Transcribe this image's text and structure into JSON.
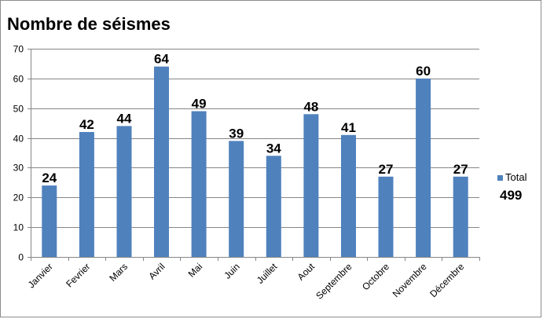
{
  "chart_data": {
    "type": "bar",
    "title": "Nombre de séismes",
    "categories": [
      "Janvier",
      "Fevrier",
      "Mars",
      "Avril",
      "Mai",
      "Juin",
      "Juillet",
      "Aout",
      "Septembre",
      "Octobre",
      "Novembre",
      "Décembre"
    ],
    "series": [
      {
        "name": "Total",
        "values": [
          24,
          42,
          44,
          64,
          49,
          39,
          34,
          48,
          41,
          27,
          60,
          27
        ],
        "data_labels": [
          "24",
          "42",
          "44",
          "64",
          "49",
          "39",
          "34",
          "48",
          "41",
          "27",
          "60",
          "27"
        ],
        "color": "#4f81bd"
      }
    ],
    "ylim": [
      0,
      70
    ],
    "yticks": [
      0,
      10,
      20,
      30,
      40,
      50,
      60,
      70
    ],
    "grid": true,
    "legend": {
      "position": "right",
      "label": "Total",
      "total": "499"
    }
  }
}
